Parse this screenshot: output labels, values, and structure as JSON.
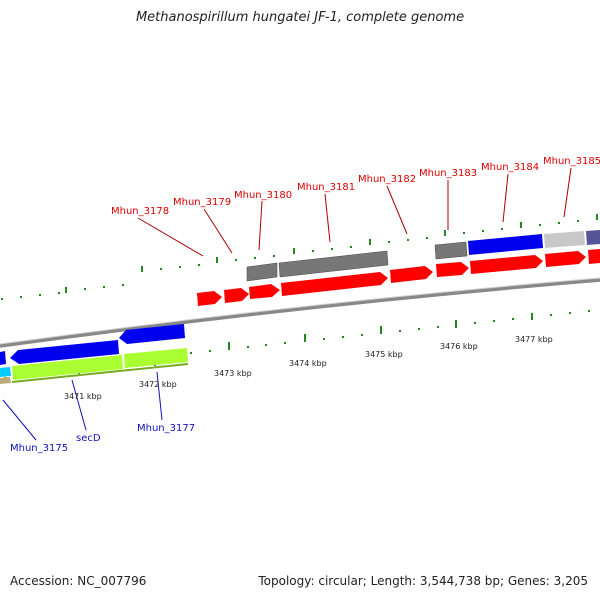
{
  "title": "Methanospirillum hungatei JF-1, complete genome",
  "footer": {
    "accession": "Accession: NC_007796",
    "topology": "Topology: circular; Length: 3,544,738 bp; Genes: 3,205"
  },
  "colors": {
    "forward_cds": "#ff0000",
    "reverse_blue": "#0000ee",
    "gray_feature": "#777777",
    "light_gray": "#c8c8c8",
    "green_feature": "#aaff33",
    "slate": "#555599",
    "cyan": "#00ccff",
    "tick": "#228822",
    "backbone": "#888888",
    "label_red": "#dd0000",
    "label_blue": "#1111bb"
  },
  "kbp_labels": [
    "3471 kbp",
    "3472 kbp",
    "3473 kbp",
    "3474 kbp",
    "3475 kbp",
    "3476 kbp",
    "3477 kbp"
  ],
  "gene_labels_top": [
    "Mhun_3178",
    "Mhun_3179",
    "Mhun_3180",
    "Mhun_3181",
    "Mhun_3182",
    "Mhun_3183",
    "Mhun_3184",
    "Mhun_3185"
  ],
  "gene_labels_bottom": [
    "Mhun_3175",
    "secD",
    "Mhun_3177"
  ]
}
